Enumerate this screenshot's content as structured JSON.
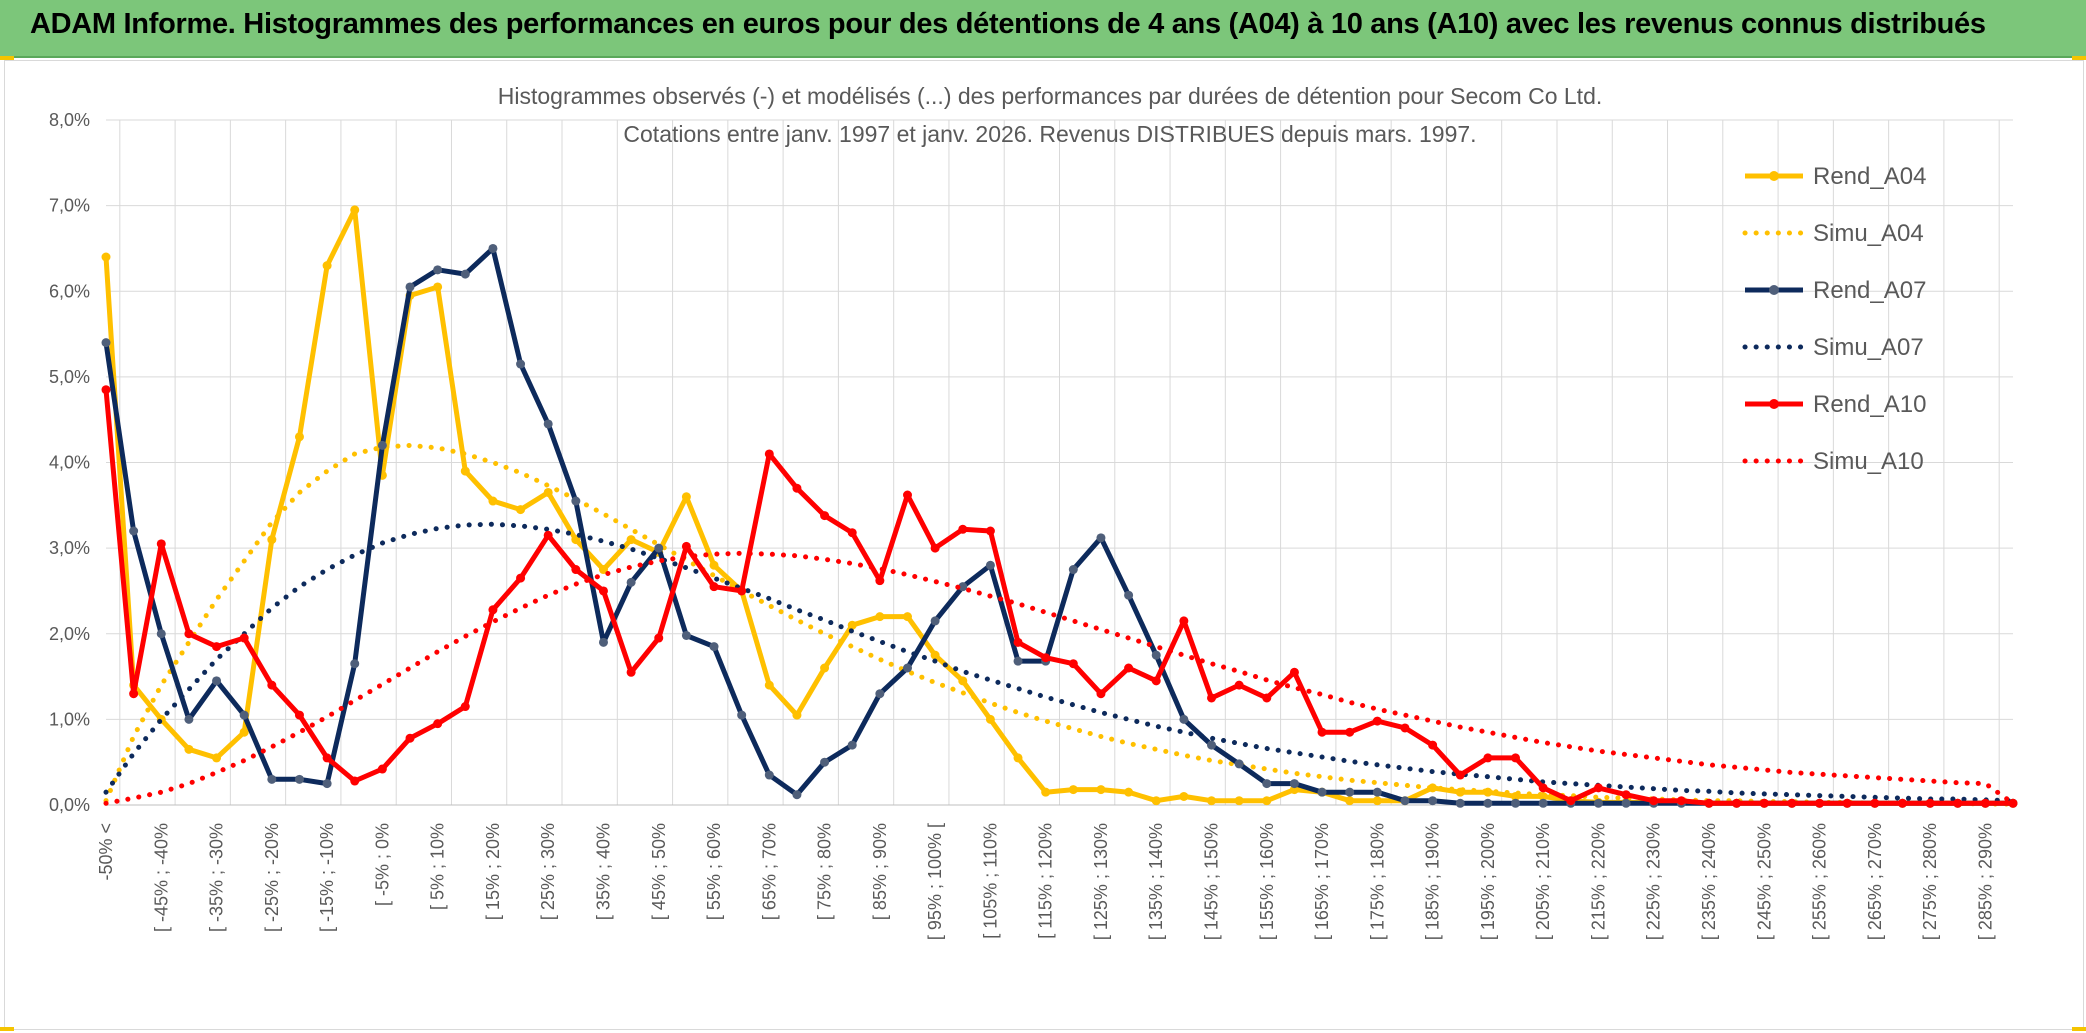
{
  "banner": {
    "title": "ADAM Informe. Histogrammes des performances en euros pour des détentions de 4 ans (A04) à 10 ans (A10) avec les revenus connus distribués"
  },
  "chart_data": {
    "type": "line",
    "title": "Histogrammes observés (-) et modélisés (...) des performances par durées de détention pour Secom Co Ltd.",
    "subtitle": "Cotations entre janv. 1997 et janv. 2026. Revenus DISTRIBUES depuis mars. 1997.",
    "xlabel": "",
    "ylabel": "",
    "ylim": [
      0,
      8
    ],
    "y_unit": "%",
    "y_ticks": [
      "0,0%",
      "1,0%",
      "2,0%",
      "3,0%",
      "4,0%",
      "5,0%",
      "6,0%",
      "7,0%",
      "8,0%"
    ],
    "grid": true,
    "legend_position": "right",
    "x_tick_labels": [
      "-50% <",
      "[ -45% ; -40%",
      "[ -35% ; -30%",
      "[ -25% ; -20%",
      "[ -15% ; -10%",
      "[ -5% ; 0%",
      "[ 5% ; 10%",
      "[ 15% ; 20%",
      "[ 25% ; 30%",
      "[ 35% ; 40%",
      "[ 45% ; 50%",
      "[ 55% ; 60%",
      "[ 65% ; 70%",
      "[ 75% ; 80%",
      "[ 85% ; 90%",
      "[ 95% ; 100% [",
      "[ 105% ; 110%",
      "[ 115% ; 120%",
      "[ 125% ; 130%",
      "[ 135% ; 140%",
      "[ 145% ; 150%",
      "[ 155% ; 160%",
      "[ 165% ; 170%",
      "[ 175% ; 180%",
      "[ 185% ; 190%",
      "[ 195% ; 200%",
      "[ 205% ; 210%",
      "[ 215% ; 220%",
      "[ 225% ; 230%",
      "[ 235% ; 240%",
      "[ 245% ; 250%",
      "[ 255% ; 260%",
      "[ 265% ; 270%",
      "[ 275% ; 280%",
      "[ 285% ; 290%"
    ],
    "n_points": 70,
    "series": [
      {
        "name": "Rend_A04",
        "color": "#ffc000",
        "style": "solid",
        "values": [
          6.4,
          1.4,
          1.0,
          0.65,
          0.55,
          0.85,
          3.1,
          4.3,
          6.3,
          6.95,
          3.85,
          5.95,
          6.05,
          3.9,
          3.55,
          3.45,
          3.65,
          3.1,
          2.75,
          3.1,
          2.95,
          3.6,
          2.8,
          2.5,
          1.4,
          1.05,
          1.6,
          2.1,
          2.2,
          2.2,
          1.75,
          1.45,
          1.0,
          0.55,
          0.15,
          0.18,
          0.18,
          0.15,
          0.05,
          0.1,
          0.05,
          0.05,
          0.05,
          0.18,
          0.15,
          0.05,
          0.05,
          0.05,
          0.2,
          0.15,
          0.15,
          0.1,
          0.1,
          0.05,
          0.03,
          0.03,
          0.03,
          0.03,
          0.02,
          0.02,
          0.02,
          0.02,
          0.02,
          0.02,
          0.02,
          0.02,
          0.02,
          0.02,
          0.02,
          0.02
        ]
      },
      {
        "name": "Simu_A04",
        "color": "#ffc000",
        "style": "dotted",
        "values": [
          0.05,
          0.8,
          1.4,
          1.9,
          2.4,
          2.85,
          3.3,
          3.65,
          3.9,
          4.1,
          4.18,
          4.2,
          4.17,
          4.1,
          4.0,
          3.88,
          3.73,
          3.57,
          3.4,
          3.22,
          3.04,
          2.86,
          2.68,
          2.5,
          2.33,
          2.16,
          2.0,
          1.85,
          1.7,
          1.56,
          1.43,
          1.31,
          1.19,
          1.08,
          0.98,
          0.89,
          0.8,
          0.72,
          0.65,
          0.58,
          0.52,
          0.47,
          0.42,
          0.37,
          0.33,
          0.29,
          0.26,
          0.23,
          0.2,
          0.18,
          0.16,
          0.14,
          0.12,
          0.11,
          0.09,
          0.08,
          0.07,
          0.06,
          0.05,
          0.05,
          0.04,
          0.04,
          0.03,
          0.03,
          0.02,
          0.02,
          0.02,
          0.02,
          0.01,
          0.01
        ]
      },
      {
        "name": "Rend_A07",
        "color": "#0d2a5c",
        "style": "solid",
        "marker": "#4f5f7a",
        "values": [
          5.4,
          3.2,
          2.0,
          1.0,
          1.45,
          1.05,
          0.3,
          0.3,
          0.25,
          1.65,
          4.2,
          6.05,
          6.25,
          6.2,
          6.5,
          5.15,
          4.45,
          3.55,
          1.9,
          2.6,
          3.0,
          1.98,
          1.85,
          1.05,
          0.35,
          0.12,
          0.5,
          0.7,
          1.3,
          1.6,
          2.15,
          2.55,
          2.8,
          1.68,
          1.68,
          2.75,
          3.12,
          2.45,
          1.75,
          1.0,
          0.7,
          0.48,
          0.25,
          0.25,
          0.15,
          0.15,
          0.15,
          0.05,
          0.05,
          0.02,
          0.02,
          0.02,
          0.02,
          0.02,
          0.02,
          0.02,
          0.02,
          0.02,
          0.02,
          0.02,
          0.02,
          0.02,
          0.02,
          0.02,
          0.02,
          0.02,
          0.02,
          0.02,
          0.02,
          0.02
        ]
      },
      {
        "name": "Simu_A07",
        "color": "#0d2a5c",
        "style": "dotted",
        "values": [
          0.15,
          0.6,
          1.0,
          1.35,
          1.7,
          2.0,
          2.3,
          2.55,
          2.75,
          2.92,
          3.06,
          3.16,
          3.23,
          3.27,
          3.28,
          3.26,
          3.22,
          3.16,
          3.08,
          2.99,
          2.88,
          2.77,
          2.65,
          2.53,
          2.41,
          2.28,
          2.16,
          2.03,
          1.91,
          1.79,
          1.68,
          1.56,
          1.46,
          1.36,
          1.26,
          1.17,
          1.08,
          1.0,
          0.92,
          0.85,
          0.78,
          0.72,
          0.66,
          0.61,
          0.56,
          0.51,
          0.47,
          0.43,
          0.39,
          0.36,
          0.33,
          0.3,
          0.27,
          0.25,
          0.23,
          0.21,
          0.19,
          0.17,
          0.16,
          0.14,
          0.13,
          0.12,
          0.11,
          0.1,
          0.09,
          0.08,
          0.07,
          0.07,
          0.06,
          0.05
        ]
      },
      {
        "name": "Rend_A10",
        "color": "#ff0000",
        "style": "solid",
        "values": [
          4.85,
          1.3,
          3.05,
          2.0,
          1.85,
          1.95,
          1.4,
          1.05,
          0.55,
          0.28,
          0.42,
          0.78,
          0.95,
          1.15,
          2.28,
          2.65,
          3.15,
          2.75,
          2.5,
          1.55,
          1.95,
          3.02,
          2.55,
          2.5,
          4.1,
          3.7,
          3.38,
          3.18,
          2.62,
          3.62,
          3.0,
          3.22,
          3.2,
          1.9,
          1.72,
          1.65,
          1.3,
          1.6,
          1.45,
          2.15,
          1.25,
          1.4,
          1.25,
          1.55,
          0.85,
          0.85,
          0.98,
          0.9,
          0.7,
          0.35,
          0.55,
          0.55,
          0.2,
          0.05,
          0.2,
          0.12,
          0.05,
          0.05,
          0.02,
          0.02,
          0.02,
          0.02,
          0.02,
          0.02,
          0.02,
          0.02,
          0.02,
          0.02,
          0.02,
          0.02
        ]
      },
      {
        "name": "Simu_A10",
        "color": "#ff0000",
        "style": "dotted",
        "values": [
          0.02,
          0.08,
          0.15,
          0.25,
          0.38,
          0.52,
          0.68,
          0.85,
          1.03,
          1.22,
          1.41,
          1.6,
          1.79,
          1.97,
          2.14,
          2.3,
          2.45,
          2.58,
          2.69,
          2.78,
          2.85,
          2.9,
          2.93,
          2.94,
          2.93,
          2.91,
          2.87,
          2.82,
          2.76,
          2.69,
          2.61,
          2.53,
          2.44,
          2.35,
          2.25,
          2.15,
          2.05,
          1.95,
          1.85,
          1.75,
          1.65,
          1.56,
          1.46,
          1.37,
          1.29,
          1.2,
          1.12,
          1.05,
          0.98,
          0.91,
          0.85,
          0.79,
          0.73,
          0.68,
          0.63,
          0.59,
          0.55,
          0.51,
          0.47,
          0.44,
          0.41,
          0.38,
          0.36,
          0.34,
          0.32,
          0.3,
          0.28,
          0.26,
          0.25,
          0.02
        ]
      }
    ]
  }
}
